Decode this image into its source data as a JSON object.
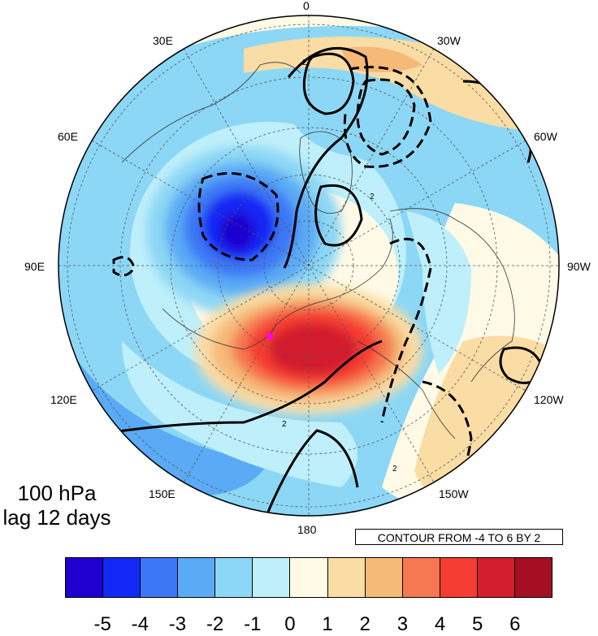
{
  "map": {
    "projection": "north polar stereographic",
    "variable_level": "100 hPa",
    "lag": "lag 12 days",
    "contour_note": "CONTOUR FROM -4 TO 6 BY 2",
    "contour_line_label": "2",
    "longitude_labels": [
      "0",
      "30W",
      "60W",
      "90W",
      "120W",
      "150W",
      "180",
      "150E",
      "120E",
      "90E",
      "60E",
      "30E"
    ],
    "colors": {
      "background": "#ffffff",
      "coastline": "#333333",
      "grid": "#555555",
      "marker": "#ff00ff"
    }
  },
  "colorbar": {
    "colors": [
      "#1e00d0",
      "#1428f5",
      "#3c78f5",
      "#5aaaf5",
      "#8cd7f5",
      "#beeffa",
      "#fffae6",
      "#fadca5",
      "#f5b978",
      "#f57850",
      "#f53c32",
      "#d21e2d",
      "#a50f23"
    ],
    "tick_labels": [
      "-5",
      "-4",
      "-3",
      "-2",
      "-1",
      "0",
      "1",
      "2",
      "3",
      "4",
      "5",
      "6"
    ]
  }
}
